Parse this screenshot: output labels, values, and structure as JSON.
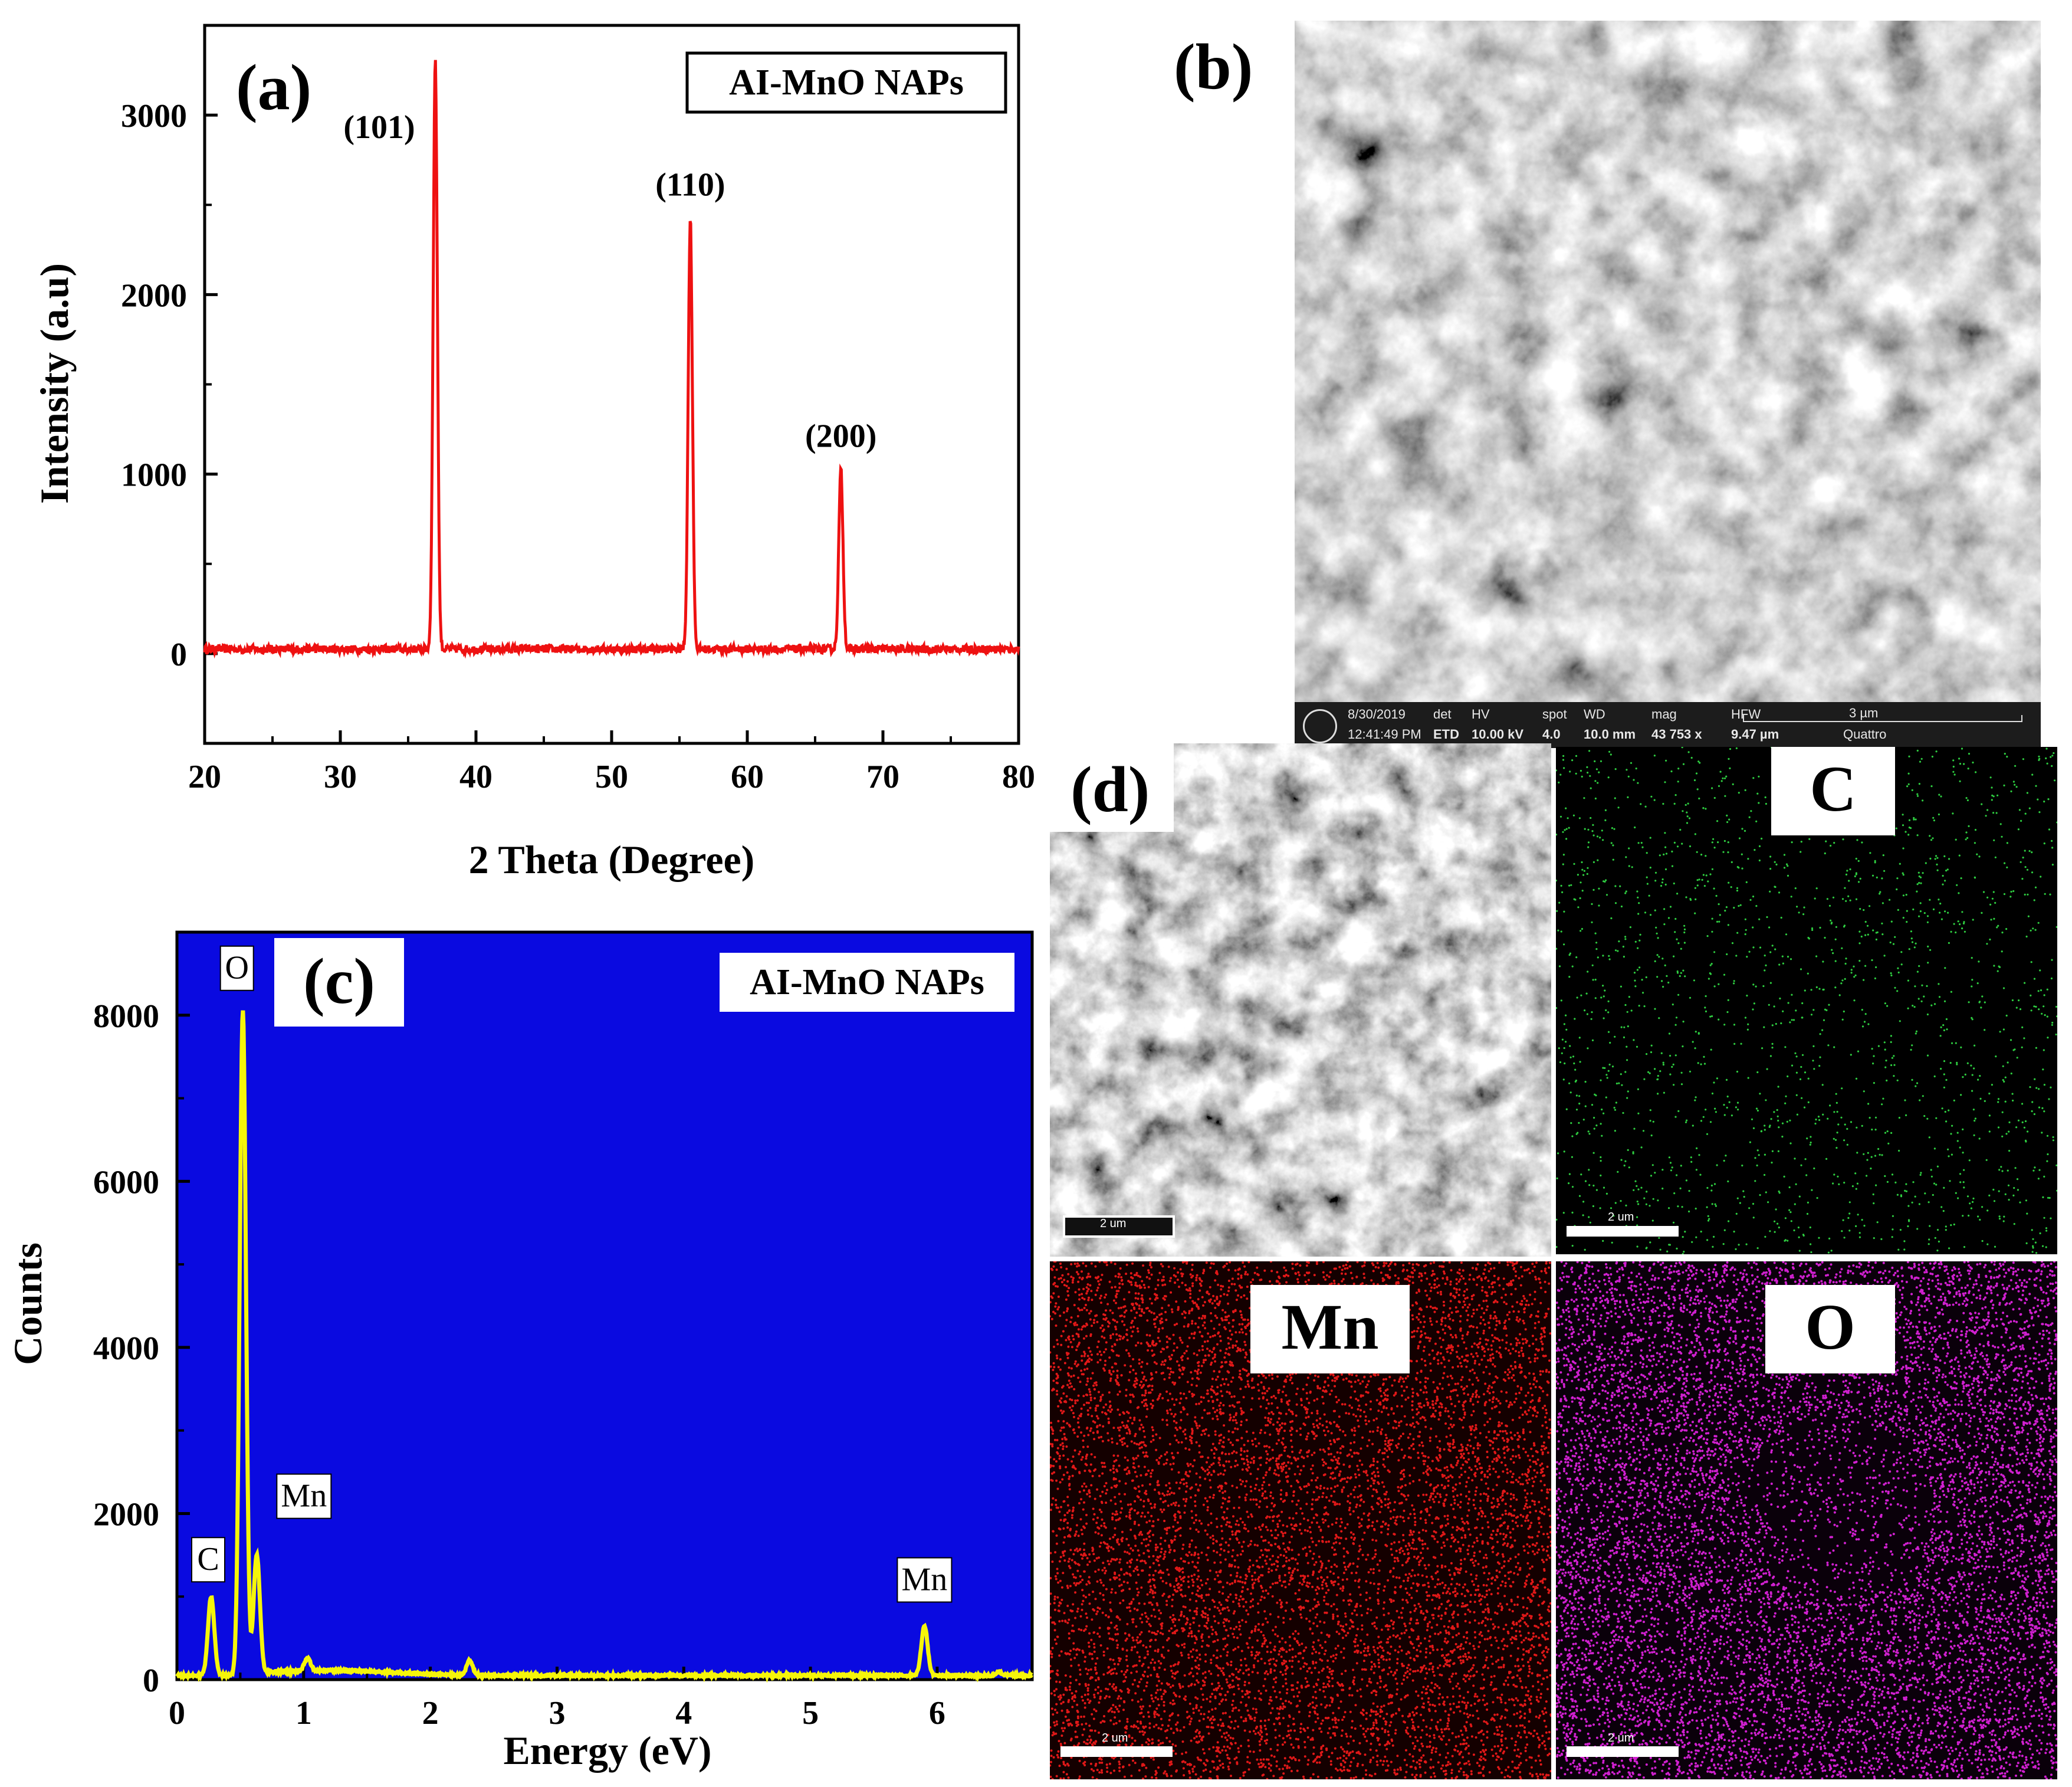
{
  "colors": {
    "xrd_line": "#ee1111",
    "eds_bg": "#0a0ae0",
    "eds_line": "#f5f50a",
    "map_c": "#2ecc40",
    "map_mn": "#e01818",
    "map_o": "#d020d0"
  },
  "panels": {
    "a": {
      "tag": "(a)"
    },
    "b": {
      "tag": "(b)"
    },
    "c": {
      "tag": "(c)"
    },
    "d": {
      "tag": "(d)"
    }
  },
  "sem_info": {
    "date": "8/30/2019",
    "time": "12:41:49 PM",
    "det_label": "det",
    "det_value": "ETD",
    "hv_label": "HV",
    "hv_value": "10.00 kV",
    "spot_label": "spot",
    "spot_value": "4.0",
    "wd_label": "WD",
    "wd_value": "10.0 mm",
    "mag_label": "mag",
    "mag_value": "43 753 x",
    "hfw_label": "HFW",
    "hfw_value": "9.47 µm",
    "scale": "3 µm",
    "instrument": "Quattro"
  },
  "maps": {
    "scale_label": "2 um",
    "c_label": "C",
    "mn_label": "Mn",
    "o_label": "O"
  },
  "chart_data": [
    {
      "id": "xrd",
      "type": "line",
      "title": "AI-MnO NAPs",
      "xlabel": "2 Theta (Degree)",
      "ylabel": "Intensity (a.u)",
      "xlim": [
        20,
        80
      ],
      "ylim": [
        -500,
        3500
      ],
      "xticks": [
        20,
        30,
        40,
        50,
        60,
        70,
        80
      ],
      "yticks": [
        0,
        1000,
        2000,
        3000
      ],
      "baseline": 25,
      "peaks": [
        {
          "x": 37.0,
          "y": 3300,
          "label": "(101)"
        },
        {
          "x": 55.8,
          "y": 2420,
          "label": "(110)"
        },
        {
          "x": 66.9,
          "y": 1020,
          "label": "(200)"
        }
      ]
    },
    {
      "id": "eds",
      "type": "line",
      "title": "AI-MnO NAPs",
      "xlabel": "Energy (eV)",
      "ylabel": "Counts",
      "xlim": [
        0,
        6.75
      ],
      "ylim": [
        0,
        9000
      ],
      "xticks": [
        0,
        1,
        2,
        3,
        4,
        5,
        6
      ],
      "yticks": [
        0,
        2000,
        4000,
        6000,
        8000
      ],
      "baseline": 50,
      "peaks": [
        {
          "x": 0.27,
          "y": 1000,
          "label": "C"
        },
        {
          "x": 0.52,
          "y": 8050,
          "label": "O"
        },
        {
          "x": 0.63,
          "y": 1480,
          "label": "Mn"
        },
        {
          "x": 1.03,
          "y": 200,
          "label": ""
        },
        {
          "x": 2.31,
          "y": 230,
          "label": ""
        },
        {
          "x": 5.9,
          "y": 650,
          "label": "Mn"
        },
        {
          "x": 6.49,
          "y": 90,
          "label": ""
        }
      ]
    }
  ]
}
